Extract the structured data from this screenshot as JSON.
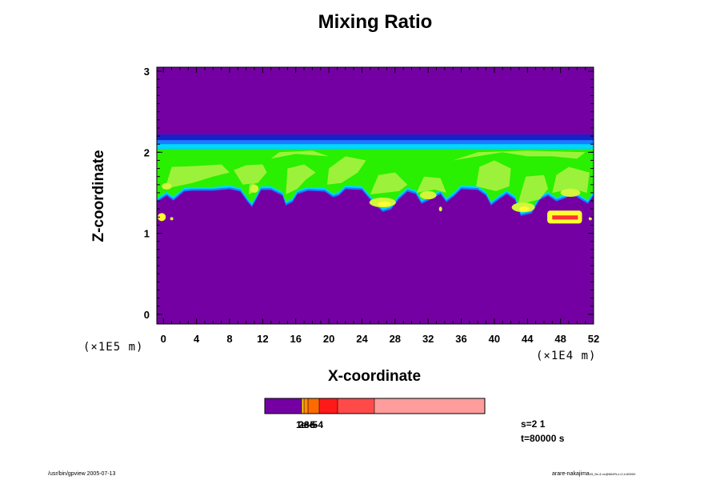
{
  "chart_data": {
    "type": "heatmap",
    "title": "Mixing Ratio",
    "xlabel": "X-coordinate",
    "ylabel": "Z-coordinate",
    "x_unit": "(×1E4 m)",
    "y_unit": "(×1E5 m)",
    "xlim": [
      -0.8,
      52
    ],
    "ylim": [
      -0.12,
      3.05
    ],
    "x_ticks": [
      "0",
      "4",
      "8",
      "12",
      "16",
      "20",
      "24",
      "28",
      "32",
      "36",
      "40",
      "44",
      "48",
      "52"
    ],
    "y_ticks": [
      "0",
      "1",
      "2",
      "3"
    ],
    "grid": false,
    "colorbar": {
      "tick_labels": [
        "1e-5",
        "2e-5",
        "3e-4"
      ],
      "colors": [
        "#7400a4",
        "#ff8c00",
        "#ff6a00",
        "#ff1a1a",
        "#ff4a4a",
        "#ff9c9c"
      ]
    },
    "colors": {
      "background": "#7400a4",
      "dark_blue": "#1820c8",
      "blue": "#1a7cff",
      "cyan": "#00d8ff",
      "green": "#28f000",
      "light_green": "#9cf23a",
      "yellow_green": "#d4f53c",
      "yellow": "#ffff30",
      "red": "#ff3030"
    }
  },
  "info": {
    "s_label": "s=2 1",
    "t_label": "t=80000 s"
  },
  "footer": {
    "left": "/usr/bin/gpview 2005-07-13",
    "right_main": "arare-nakajima",
    "right_sub": "03_5e-4.nc@MixRt,x=2,t=80000"
  }
}
